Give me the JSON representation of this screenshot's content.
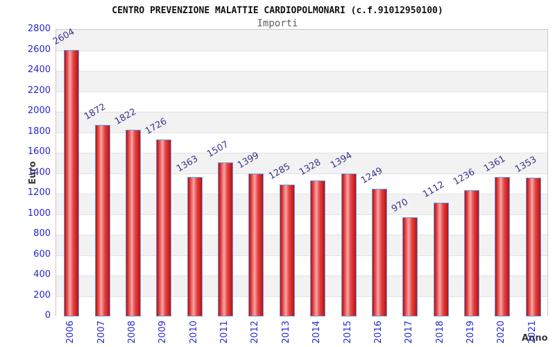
{
  "chart_data": {
    "type": "bar",
    "title": "CENTRO PREVENZIONE MALATTIE CARDIOPOLMONARI (c.f.91012950100)",
    "subtitle": "Importi",
    "xlabel": "Anno",
    "ylabel": "Euro",
    "categories": [
      "2006",
      "2007",
      "2008",
      "2009",
      "2010",
      "2011",
      "2012",
      "2013",
      "2014",
      "2015",
      "2016",
      "2017",
      "2018",
      "2019",
      "2020",
      "2021"
    ],
    "values": [
      2604,
      1872,
      1822,
      1726,
      1363,
      1507,
      1399,
      1285,
      1328,
      1394,
      1249,
      970,
      1112,
      1236,
      1361,
      1353
    ],
    "ylim": [
      0,
      2800
    ],
    "ytick_step": 200,
    "ytick_labels": [
      "0",
      "200",
      "400",
      "600",
      "800",
      "1000",
      "1200",
      "1400",
      "1600",
      "1800",
      "2000",
      "2200",
      "2400",
      "2600",
      "2800"
    ],
    "grid": "horizontal alternating bands, gray first from top",
    "legend": null,
    "bar_label_rotation_deg": -30,
    "x_label_rotation_deg": -90
  },
  "colors": {
    "bar_fill_dark": "#bd0f0f",
    "bar_fill_light": "#f8a6a6",
    "bar_border": "#5e9fe6",
    "axis_tick_text": "#2626cf",
    "bar_value_text": "#35358f",
    "band_gray": "#f2f2f2",
    "band_white": "#ffffff",
    "plot_border": "#c8c8c8",
    "title_text": "#111111",
    "subtitle_text": "#5f5f5f",
    "axis_title_text": "#3a3a3a"
  }
}
